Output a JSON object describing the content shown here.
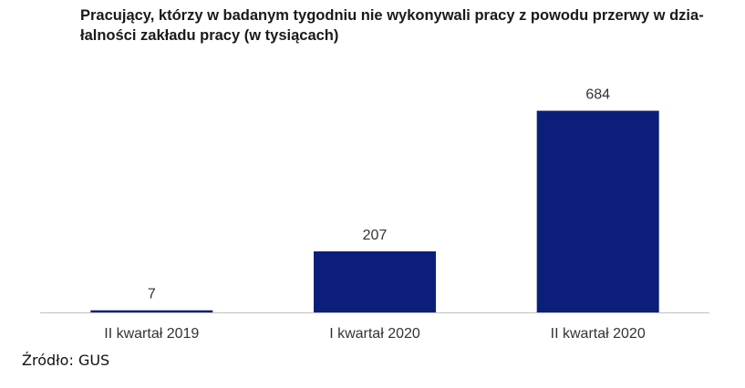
{
  "chart_data": {
    "type": "bar",
    "title": "Pracujący, którzy w badanym tygodniu nie wykonywali pracy z powodu przerwy w dzia-łalności zakładu pracy (w tysiącach)",
    "categories": [
      "II kwartał 2019",
      "I kwartał 2020",
      "II kwartał 2020"
    ],
    "values": [
      7,
      207,
      684
    ],
    "data_labels": [
      "7",
      "207",
      "684"
    ],
    "xlabel": "",
    "ylabel": "",
    "ylim": [
      0,
      760
    ],
    "grid": false,
    "legend": "none",
    "colors": {
      "bar": "#0b1f7a",
      "axis": "#bfbfbf",
      "label": "#333333"
    }
  },
  "title_lines": [
    "Pracujący, którzy w badanym tygodniu nie wykonywali pracy z powodu przerwy w dzia-",
    "łalności zakładu pracy (w tysiącach)"
  ],
  "source": "Źródło: GUS"
}
